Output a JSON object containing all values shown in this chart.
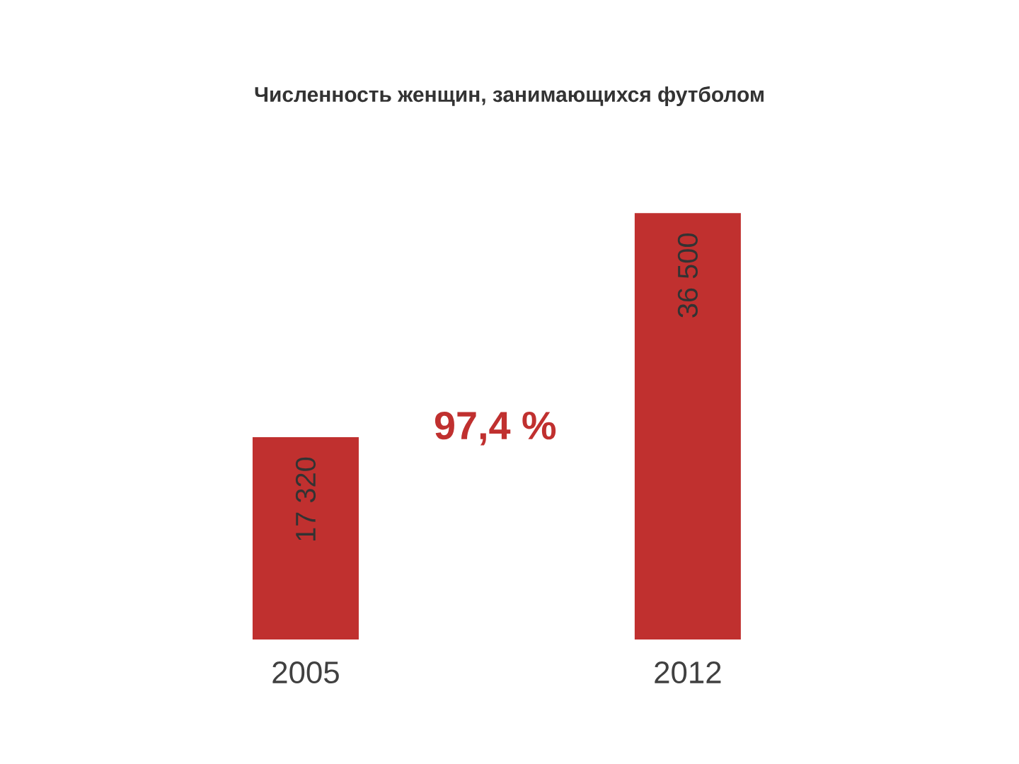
{
  "chart_data": {
    "type": "bar",
    "title": "Численность женщин, занимающихся футболом",
    "categories": [
      "2005",
      "2012"
    ],
    "values": [
      17320,
      36500
    ],
    "value_labels": [
      "17 320",
      "36 500"
    ],
    "color": "#c0302f",
    "annotations": [
      "97,4 %"
    ]
  }
}
